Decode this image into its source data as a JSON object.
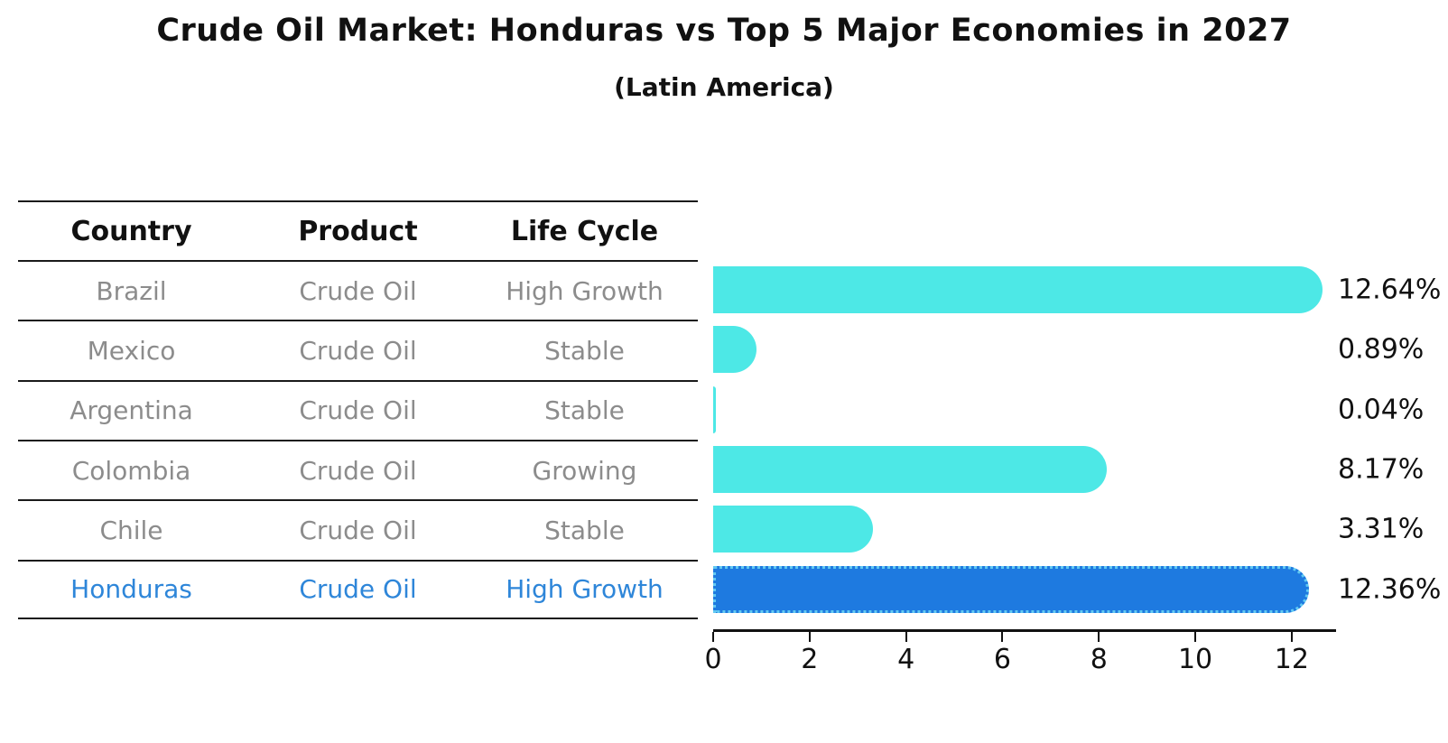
{
  "title": "Crude Oil Market: Honduras vs Top 5 Major Economies in 2027",
  "subtitle": "(Latin America)",
  "table": {
    "headers": [
      "Country",
      "Product",
      "Life Cycle"
    ],
    "rows": [
      {
        "country": "Brazil",
        "product": "Crude Oil",
        "life_cycle": "High Growth",
        "highlight": false
      },
      {
        "country": "Mexico",
        "product": "Crude Oil",
        "life_cycle": "Stable",
        "highlight": false
      },
      {
        "country": "Argentina",
        "product": "Crude Oil",
        "life_cycle": "Stable",
        "highlight": false
      },
      {
        "country": "Colombia",
        "product": "Crude Oil",
        "life_cycle": "Growing",
        "highlight": false
      },
      {
        "country": "Chile",
        "product": "Crude Oil",
        "life_cycle": "Stable",
        "highlight": false
      },
      {
        "country": "Honduras",
        "product": "Crude Oil",
        "life_cycle": "High Growth",
        "highlight": true
      }
    ]
  },
  "chart_data": {
    "type": "bar",
    "orientation": "horizontal",
    "title": "Crude Oil Market: Honduras vs Top 5 Major Economies in 2027",
    "subtitle": "(Latin America)",
    "categories": [
      "Brazil",
      "Mexico",
      "Argentina",
      "Colombia",
      "Chile",
      "Honduras"
    ],
    "values": [
      12.64,
      0.89,
      0.04,
      8.17,
      3.31,
      12.36
    ],
    "value_labels": [
      "12.64%",
      "0.89%",
      "0.04%",
      "8.17%",
      "3.31%",
      "12.36%"
    ],
    "unit": "%",
    "x_ticks": [
      0,
      2,
      4,
      6,
      8,
      10,
      12
    ],
    "xlim": [
      0,
      12.92
    ],
    "grid": false,
    "legend": false,
    "highlight_index": 5,
    "bar_color": "#4de8e6",
    "highlight_bar_color": "#1e7ae0",
    "highlight_border_color": "#62c9f2",
    "highlight_text_color": "#2e86d9"
  }
}
